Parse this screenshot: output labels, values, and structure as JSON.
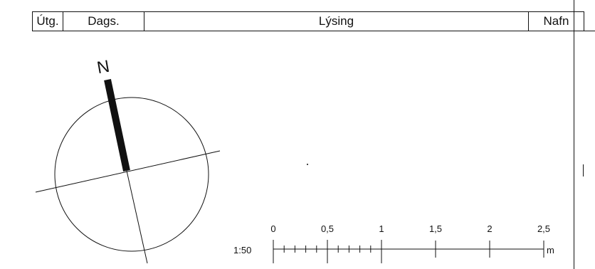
{
  "revision_table": {
    "columns": [
      {
        "key": "utg",
        "label": "Útg."
      },
      {
        "key": "dags",
        "label": "Dags."
      },
      {
        "key": "lysing",
        "label": "Lýsing"
      },
      {
        "key": "nafn",
        "label": "Nafn"
      }
    ]
  },
  "north_arrow": {
    "label": "N"
  },
  "scale_bar": {
    "ratio_label": "1:50",
    "unit_label": "m",
    "ticks": [
      "0",
      "0,5",
      "1",
      "1,5",
      "2",
      "2,5"
    ]
  }
}
